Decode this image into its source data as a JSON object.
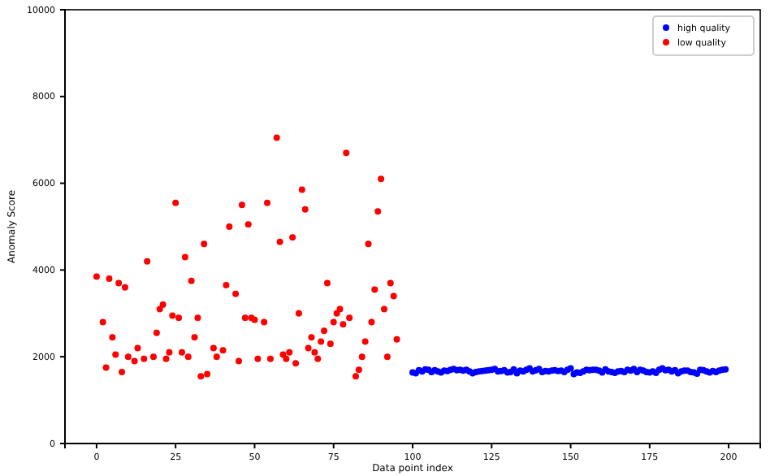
{
  "chart_data": {
    "type": "scatter",
    "xlabel": "Data point index",
    "ylabel": "Anomaly Score",
    "xlim": [
      -10,
      210
    ],
    "ylim": [
      0,
      10000
    ],
    "xticks": [
      0,
      25,
      50,
      75,
      100,
      125,
      150,
      175,
      200
    ],
    "yticks": [
      0,
      2000,
      4000,
      6000,
      8000,
      10000
    ],
    "grid": false,
    "legend": "top right",
    "marker": "circle",
    "series": [
      {
        "name": "high quality",
        "color": "#0000ff",
        "x": [
          100,
          101,
          102,
          103,
          104,
          105,
          106,
          107,
          108,
          109,
          110,
          111,
          112,
          113,
          114,
          115,
          116,
          117,
          118,
          119,
          120,
          121,
          122,
          123,
          124,
          125,
          126,
          127,
          128,
          129,
          130,
          131,
          132,
          133,
          134,
          135,
          136,
          137,
          138,
          139,
          140,
          141,
          142,
          143,
          144,
          145,
          146,
          147,
          148,
          149,
          150,
          151,
          152,
          153,
          154,
          155,
          156,
          157,
          158,
          159,
          160,
          161,
          162,
          163,
          164,
          165,
          166,
          167,
          168,
          169,
          170,
          171,
          172,
          173,
          174,
          175,
          176,
          177,
          178,
          179,
          180,
          181,
          182,
          183,
          184,
          185,
          186,
          187,
          188,
          189,
          190,
          191,
          192,
          193,
          194,
          195,
          196,
          197,
          198,
          199
        ],
        "values": [
          1640,
          1620,
          1690,
          1660,
          1710,
          1700,
          1650,
          1690,
          1660,
          1640,
          1680,
          1670,
          1700,
          1720,
          1690,
          1700,
          1680,
          1700,
          1660,
          1620,
          1650,
          1660,
          1670,
          1680,
          1690,
          1700,
          1720,
          1660,
          1670,
          1690,
          1640,
          1650,
          1710,
          1620,
          1680,
          1660,
          1700,
          1730,
          1660,
          1690,
          1720,
          1650,
          1670,
          1660,
          1680,
          1690,
          1670,
          1680,
          1650,
          1700,
          1730,
          1600,
          1640,
          1630,
          1660,
          1700,
          1690,
          1700,
          1700,
          1680,
          1640,
          1710,
          1660,
          1650,
          1630,
          1660,
          1670,
          1650,
          1700,
          1680,
          1720,
          1650,
          1700,
          1680,
          1650,
          1640,
          1660,
          1630,
          1700,
          1730,
          1690,
          1700,
          1660,
          1690,
          1620,
          1660,
          1680,
          1680,
          1650,
          1640,
          1610,
          1700,
          1690,
          1660,
          1640,
          1670,
          1650,
          1680,
          1700,
          1710
        ]
      },
      {
        "name": "low quality",
        "color": "#ff0000",
        "x": [
          0,
          2,
          3,
          4,
          5,
          6,
          7,
          8,
          9,
          10,
          12,
          13,
          15,
          16,
          18,
          19,
          20,
          21,
          22,
          23,
          24,
          25,
          26,
          27,
          28,
          29,
          30,
          31,
          32,
          33,
          34,
          35,
          37,
          38,
          40,
          41,
          42,
          44,
          45,
          46,
          47,
          48,
          49,
          50,
          51,
          53,
          54,
          55,
          57,
          58,
          59,
          60,
          61,
          62,
          63,
          64,
          65,
          66,
          67,
          68,
          69,
          70,
          71,
          72,
          73,
          74,
          75,
          76,
          77,
          78,
          79,
          80,
          82,
          83,
          84,
          85,
          86,
          87,
          88,
          89,
          90,
          91,
          92,
          93,
          94,
          95
        ],
        "values": [
          3850,
          2800,
          1750,
          3800,
          2450,
          2050,
          3700,
          1650,
          3600,
          2000,
          1900,
          2200,
          1950,
          4200,
          2000,
          2550,
          3100,
          3200,
          1950,
          2100,
          2950,
          5550,
          2900,
          2100,
          4300,
          2000,
          3750,
          2450,
          2900,
          1550,
          4600,
          1600,
          2200,
          2000,
          2150,
          3650,
          5000,
          3450,
          1900,
          5500,
          2900,
          5050,
          2900,
          2850,
          1950,
          2800,
          5550,
          1950,
          7050,
          4650,
          2050,
          1950,
          2100,
          4750,
          1850,
          3000,
          5850,
          5400,
          2200,
          2450,
          2100,
          1950,
          2350,
          2600,
          3700,
          2300,
          2800,
          3000,
          3100,
          2750,
          6700,
          2900,
          1550,
          1700,
          2000,
          2350,
          4600,
          2800,
          3550,
          5350,
          6100,
          3100,
          2000,
          3700,
          3400,
          2400
        ]
      }
    ]
  }
}
